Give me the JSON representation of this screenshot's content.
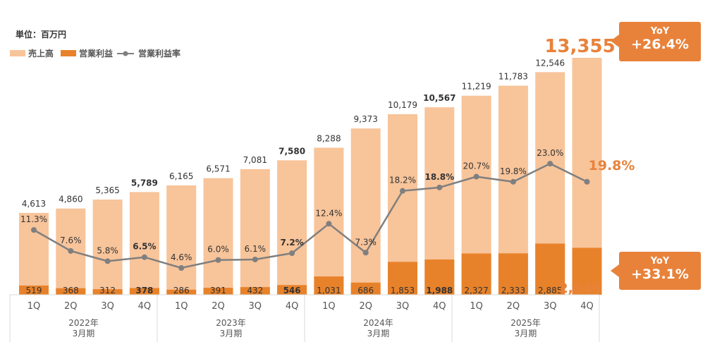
{
  "chart_data": {
    "type": "bar+line",
    "unit_label": "単位：百万円",
    "legend": [
      "売上高",
      "営業利益",
      "営業利益率"
    ],
    "quarters": [
      "1Q",
      "2Q",
      "3Q",
      "4Q",
      "1Q",
      "2Q",
      "3Q",
      "4Q",
      "1Q",
      "2Q",
      "3Q",
      "4Q",
      "1Q",
      "2Q",
      "3Q",
      "4Q"
    ],
    "years": [
      {
        "line1": "2022年",
        "line2": "3月期"
      },
      {
        "line1": "2023年",
        "line2": "3月期"
      },
      {
        "line1": "2024年",
        "line2": "3月期"
      },
      {
        "line1": "2025年",
        "line2": "3月期"
      }
    ],
    "series": [
      {
        "name": "売上高",
        "values": [
          4613,
          4860,
          5365,
          5789,
          6165,
          6571,
          7081,
          7580,
          8288,
          9373,
          10179,
          10567,
          11219,
          11783,
          12546,
          13355
        ],
        "labels": [
          "4,613",
          "4,860",
          "5,365",
          "5,789",
          "6,165",
          "6,571",
          "7,081",
          "7,580",
          "8,288",
          "9,373",
          "10,179",
          "10,567",
          "11,219",
          "11,783",
          "12,546",
          "13,355"
        ]
      },
      {
        "name": "営業利益",
        "values": [
          519,
          368,
          312,
          378,
          286,
          391,
          432,
          546,
          1031,
          686,
          1853,
          1988,
          2327,
          2333,
          2885,
          2646
        ],
        "labels": [
          "519",
          "368",
          "312",
          "378",
          "286",
          "391",
          "432",
          "546",
          "1,031",
          "686",
          "1,853",
          "1,988",
          "2,327",
          "2,333",
          "2,885",
          "2,646"
        ]
      },
      {
        "name": "営業利益率",
        "values": [
          11.3,
          7.6,
          5.8,
          6.5,
          4.6,
          6.0,
          6.1,
          7.2,
          12.4,
          7.3,
          18.2,
          18.8,
          20.7,
          19.8,
          23.0,
          19.8
        ],
        "labels": [
          "11.3%",
          "7.6%",
          "5.8%",
          "6.5%",
          "4.6%",
          "6.0%",
          "6.1%",
          "7.2%",
          "12.4%",
          "7.3%",
          "18.2%",
          "18.8%",
          "20.7%",
          "19.8%",
          "23.0%",
          "19.8%"
        ]
      }
    ],
    "callouts": {
      "sales": {
        "title": "YoY",
        "value": "+26.4%"
      },
      "profit": {
        "title": "YoY",
        "value": "+33.1%"
      }
    },
    "colors": {
      "sales": "#F8C49A",
      "profit": "#E8822A",
      "line": "#7F7F7F",
      "highlight": "#E8823A"
    }
  }
}
